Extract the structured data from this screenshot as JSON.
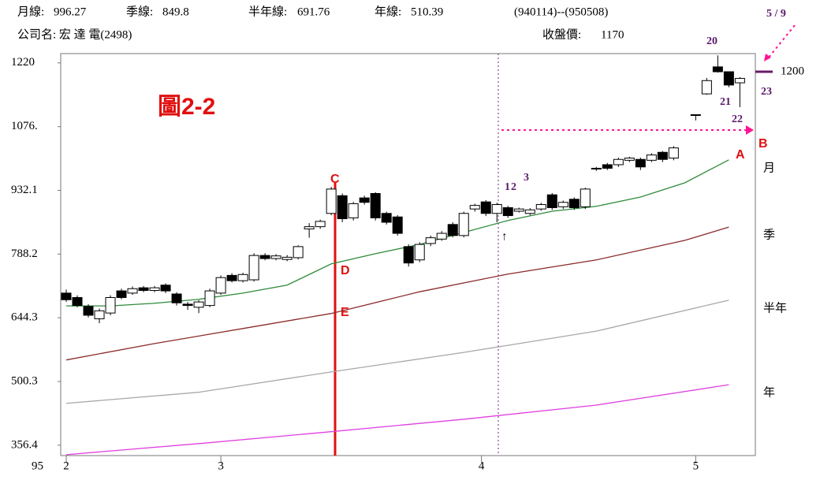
{
  "header": {
    "stats": [
      {
        "label": "月線:",
        "value": 996.27
      },
      {
        "label": "季線:",
        "value": 849.8
      },
      {
        "label": "半年線:",
        "value": 691.76
      },
      {
        "label": "年線:",
        "value": 510.39
      }
    ],
    "date_range": "(940114)--(950508)",
    "company": "公司名: 宏 達 電(2498)",
    "close": {
      "label": "收盤價:",
      "value": 1170
    }
  },
  "chart_data": {
    "type": "candlestick",
    "x": [
      0,
      1,
      2,
      3,
      4,
      5,
      6,
      7,
      8,
      9,
      10,
      11,
      12,
      13,
      14,
      15,
      16,
      17,
      18,
      19,
      20,
      21,
      22,
      23,
      24,
      25,
      26,
      27,
      28,
      29,
      30,
      31,
      32,
      33,
      34,
      35,
      36,
      37,
      38,
      39,
      40,
      41,
      42,
      43,
      44,
      45,
      46,
      47,
      48,
      49,
      50,
      51,
      52,
      53,
      54,
      55,
      57,
      58,
      59,
      60,
      61
    ],
    "open": [
      700,
      690,
      670,
      642,
      655,
      705,
      700,
      712,
      706,
      718,
      698,
      675,
      668,
      672,
      700,
      740,
      728,
      730,
      785,
      778,
      776,
      780,
      845,
      850,
      880,
      920,
      870,
      915,
      925,
      880,
      872,
      805,
      775,
      812,
      822,
      855,
      830,
      890,
      906,
      880,
      893,
      885,
      880,
      890,
      922,
      895,
      912,
      895,
      980,
      990,
      990,
      1000,
      1002,
      1000,
      1018,
      1005,
      1103,
      1150,
      1211,
      1200,
      1175
    ],
    "high": [
      708,
      695,
      675,
      665,
      695,
      710,
      715,
      716,
      716,
      722,
      702,
      680,
      684,
      710,
      740,
      745,
      746,
      790,
      790,
      788,
      786,
      808,
      858,
      866,
      940,
      925,
      906,
      920,
      928,
      884,
      876,
      810,
      815,
      830,
      840,
      860,
      884,
      902,
      910,
      904,
      897,
      893,
      892,
      904,
      926,
      909,
      916,
      938,
      985,
      994,
      1006,
      1008,
      1006,
      1016,
      1021,
      1032,
      1103,
      1186,
      1237,
      1200,
      1188
    ],
    "low": [
      680,
      668,
      645,
      632,
      650,
      686,
      696,
      702,
      702,
      700,
      672,
      662,
      655,
      668,
      696,
      724,
      724,
      726,
      774,
      774,
      772,
      776,
      825,
      845,
      876,
      860,
      864,
      900,
      864,
      855,
      830,
      760,
      770,
      806,
      818,
      826,
      826,
      884,
      874,
      860,
      870,
      882,
      876,
      886,
      888,
      890,
      888,
      890,
      976,
      978,
      985,
      996,
      978,
      996,
      996,
      1000,
      1090,
      1148,
      1198,
      1165,
      1120
    ],
    "close": [
      685,
      672,
      650,
      660,
      690,
      690,
      710,
      706,
      712,
      705,
      678,
      672,
      680,
      705,
      735,
      728,
      742,
      785,
      778,
      784,
      781,
      805,
      850,
      862,
      935,
      868,
      902,
      905,
      870,
      860,
      835,
      768,
      810,
      825,
      835,
      830,
      880,
      898,
      880,
      900,
      875,
      890,
      888,
      900,
      893,
      905,
      893,
      935,
      982,
      982,
      1002,
      1005,
      985,
      1012,
      1002,
      1028,
      1103,
      1180,
      1200,
      1170,
      1185
    ],
    "up_color": "#ffffff",
    "down_color": "#000000",
    "lines": [
      {
        "name": "月",
        "color": "#2e8b3a",
        "x": [
          0,
          4,
          8,
          12,
          16,
          20,
          24,
          28,
          32,
          36,
          40,
          44,
          48,
          52,
          56,
          60
        ],
        "values": [
          671,
          671,
          677,
          686,
          700,
          718,
          766,
          789,
          810,
          837,
          864,
          885,
          896,
          917,
          949,
          1001
        ]
      },
      {
        "name": "季",
        "color": "#8b2a2a",
        "x": [
          0,
          8,
          16,
          24,
          32,
          40,
          48,
          56,
          60
        ],
        "values": [
          549,
          586,
          620,
          654,
          703,
          743,
          775,
          819,
          849
        ]
      },
      {
        "name": "半年",
        "color": "#a8a8a8",
        "x": [
          0,
          12,
          24,
          36,
          48,
          60
        ],
        "values": [
          451,
          476,
          522,
          566,
          614,
          684
        ]
      },
      {
        "name": "年",
        "color": "#e040e0",
        "x": [
          0,
          12,
          24,
          36,
          48,
          60
        ],
        "values": [
          335,
          360,
          387,
          415,
          447,
          493
        ]
      }
    ],
    "ylim": [
      333,
      1241
    ],
    "yticks": [
      1220,
      {
        "value": 1076,
        "label": "1076."
      },
      932.1,
      788.2,
      644.3,
      500.3,
      356.4
    ],
    "xlim": [
      -0.5,
      62.4
    ],
    "xticks": [
      {
        "value": 0,
        "label": "2"
      },
      {
        "value": 14,
        "label": "3"
      },
      {
        "value": 37.6,
        "label": "4"
      },
      {
        "value": 57,
        "label": "5"
      }
    ],
    "year_label": "95",
    "marker": {
      "value": 1200,
      "color": "#6a1b6a"
    },
    "annotations": [
      "圖2-2",
      "A",
      "B",
      "C",
      "D",
      "E",
      "1",
      "2",
      "3",
      "↑",
      "20",
      "21",
      "22",
      "23",
      "5 / 9"
    ]
  }
}
